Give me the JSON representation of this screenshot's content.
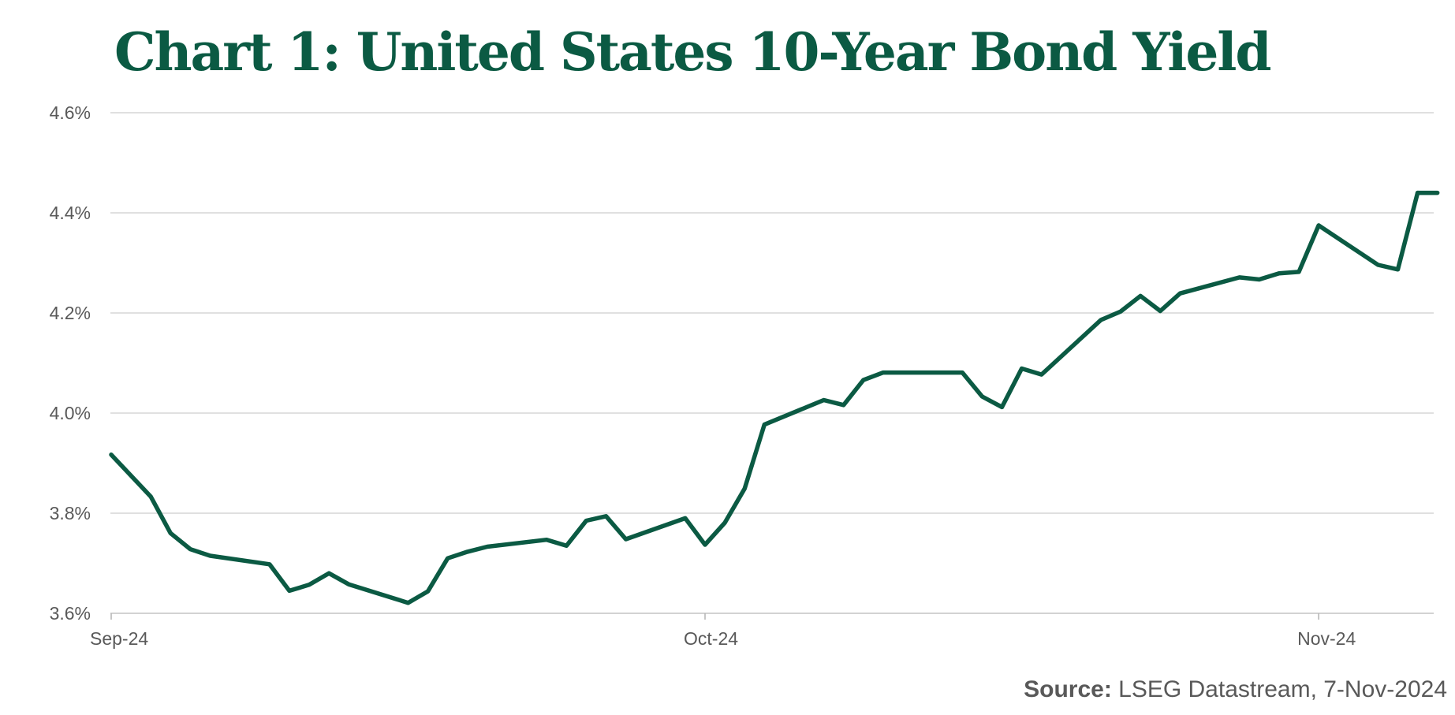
{
  "colors": {
    "title": "#0b5a43",
    "series": "#0b5a43",
    "grid": "#d6d6d6",
    "tick_text": "#595959"
  },
  "source": {
    "label": "Source:",
    "text": " LSEG Datastream, 7-Nov-2024"
  },
  "chart_data": {
    "type": "line",
    "title": "Chart 1: United States 10-Year Bond Yield",
    "xlabel": "",
    "ylabel": "",
    "grid": true,
    "legend": "none",
    "ylim": [
      3.6,
      4.6
    ],
    "y_ticks": [
      3.6,
      3.8,
      4.0,
      4.2,
      4.4,
      4.6
    ],
    "y_tick_labels": [
      "3.6%",
      "3.8%",
      "4.0%",
      "4.2%",
      "4.4%",
      "4.6%"
    ],
    "x_ticks": [
      {
        "date": "2024-09-01",
        "label": "Sep-24"
      },
      {
        "date": "2024-10-01",
        "label": "Oct-24"
      },
      {
        "date": "2024-11-01",
        "label": "Nov-24"
      }
    ],
    "xlim": [
      "2024-09-01",
      "2024-11-06"
    ],
    "series": [
      {
        "name": "",
        "x": [
          "2024-09-01",
          "2024-09-03",
          "2024-09-04",
          "2024-09-05",
          "2024-09-06",
          "2024-09-09",
          "2024-09-10",
          "2024-09-11",
          "2024-09-12",
          "2024-09-13",
          "2024-09-16",
          "2024-09-17",
          "2024-09-18",
          "2024-09-19",
          "2024-09-20",
          "2024-09-23",
          "2024-09-24",
          "2024-09-25",
          "2024-09-26",
          "2024-09-27",
          "2024-09-30",
          "2024-10-01",
          "2024-10-02",
          "2024-10-03",
          "2024-10-04",
          "2024-10-07",
          "2024-10-08",
          "2024-10-09",
          "2024-10-10",
          "2024-10-11",
          "2024-10-14",
          "2024-10-15",
          "2024-10-16",
          "2024-10-17",
          "2024-10-18",
          "2024-10-21",
          "2024-10-22",
          "2024-10-23",
          "2024-10-24",
          "2024-10-25",
          "2024-10-28",
          "2024-10-29",
          "2024-10-30",
          "2024-10-31",
          "2024-11-01",
          "2024-11-04",
          "2024-11-05",
          "2024-11-06"
        ],
        "values": [
          3.917,
          3.833,
          3.76,
          3.728,
          3.715,
          3.698,
          3.645,
          3.657,
          3.68,
          3.658,
          3.621,
          3.644,
          3.71,
          3.723,
          3.733,
          3.747,
          3.735,
          3.785,
          3.794,
          3.748,
          3.79,
          3.737,
          3.781,
          3.849,
          3.977,
          4.026,
          4.016,
          4.066,
          4.081,
          4.081,
          4.081,
          4.033,
          4.012,
          4.089,
          4.077,
          4.186,
          4.203,
          4.234,
          4.204,
          4.239,
          4.271,
          4.267,
          4.279,
          4.282,
          4.375,
          4.296,
          4.287,
          4.44
        ]
      },
      {
        "name": "",
        "x": [
          "2024-11-06",
          "2024-11-07"
        ],
        "values": [
          4.44,
          4.44
        ]
      }
    ]
  }
}
